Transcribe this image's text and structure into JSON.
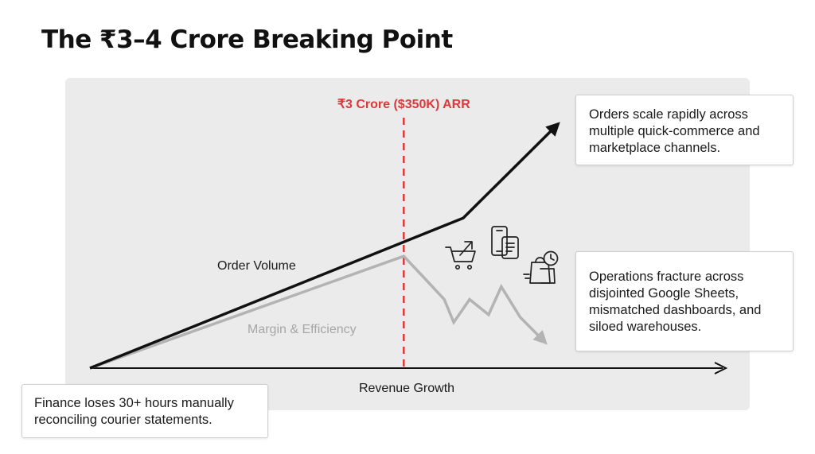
{
  "title": "The ₹3–4 Crore Breaking Point",
  "colors": {
    "background_panel": "#ebebeb",
    "order_volume": "#111111",
    "margin_efficiency": "#b3b3b3",
    "threshold": "#d93a3a"
  },
  "icons": [
    "shopping-cart-icon",
    "mobile-devices-icon",
    "shopping-bags-clock-icon"
  ],
  "chart_data": {
    "type": "line",
    "xlabel": "Revenue Growth",
    "ylabel": "",
    "xlim": [
      0,
      100
    ],
    "ylim": [
      0,
      100
    ],
    "threshold": {
      "label": "₹3 Crore ($350K) ARR",
      "x": 49.6
    },
    "series": [
      {
        "name": "Order Volume",
        "x": [
          0,
          59,
          74
        ],
        "y": [
          0,
          59,
          96
        ]
      },
      {
        "name": "Margin & Efficiency",
        "x": [
          0,
          49.6,
          53,
          56,
          57.5,
          60,
          63,
          65,
          68,
          72
        ],
        "y": [
          0,
          44,
          35,
          27,
          18,
          27,
          21,
          32,
          20,
          10
        ]
      }
    ]
  },
  "callouts": {
    "top": [
      "Orders scale rapidly across",
      "multiple quick-commerce and",
      "marketplace channels."
    ],
    "middle": [
      "Operations fracture across",
      "disjointed Google Sheets,",
      "mismatched dashboards, and",
      "siloed warehouses."
    ],
    "bottom": [
      "Finance loses 30+ hours manually",
      "reconciling courier statements."
    ]
  }
}
